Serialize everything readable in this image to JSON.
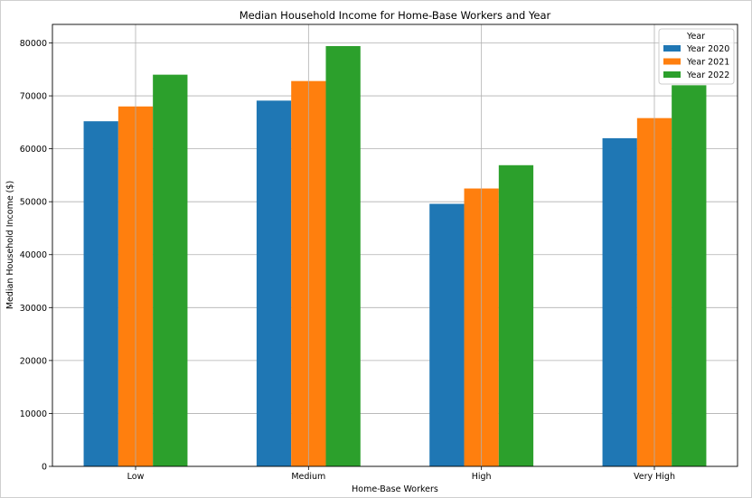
{
  "chart_data": {
    "type": "bar",
    "title": "Median Household Income for Home-Base Workers and Year",
    "xlabel": "Home-Base Workers",
    "ylabel": "Median Household Income ($)",
    "categories": [
      "Low",
      "Medium",
      "High",
      "Very High"
    ],
    "series": [
      {
        "name": "Year 2020",
        "values": [
          65200,
          69100,
          49600,
          62000
        ],
        "color": "#1f77b4"
      },
      {
        "name": "Year 2021",
        "values": [
          68000,
          72800,
          52500,
          65800
        ],
        "color": "#ff7f0e"
      },
      {
        "name": "Year 2022",
        "values": [
          74000,
          79400,
          56900,
          72000
        ],
        "color": "#2ca02c"
      }
    ],
    "ylim": [
      0,
      83500
    ],
    "yticks": [
      0,
      10000,
      20000,
      30000,
      40000,
      50000,
      60000,
      70000,
      80000
    ],
    "grid": true,
    "legend": {
      "title": "Year",
      "placement": "top-right"
    }
  }
}
